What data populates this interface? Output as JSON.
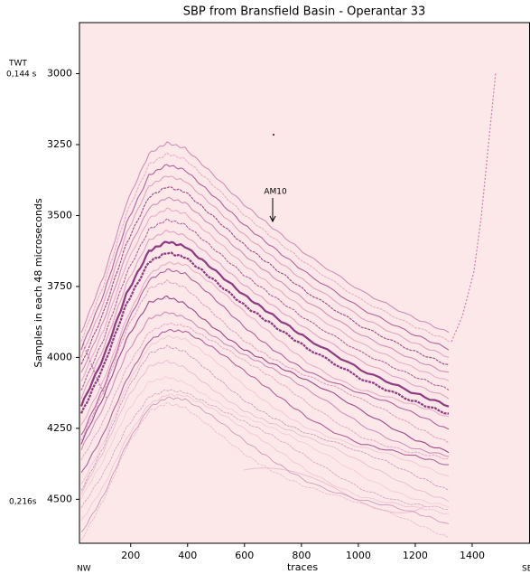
{
  "chart_data": {
    "type": "image",
    "title": "SBP from Bransfield Basin - Operantar 33",
    "xlabel": "traces",
    "ylabel": "Samples in each 48 microseconds",
    "xlim": [
      20,
      1600
    ],
    "xticks": [
      200,
      400,
      600,
      800,
      1000,
      1200,
      1400
    ],
    "ylim": [
      4655,
      2820
    ],
    "yticks": [
      3000,
      3250,
      3500,
      3750,
      4000,
      4250,
      4500
    ],
    "background": "#fde8e9",
    "annotations": {
      "twt": "TWT",
      "top_time": "0,144 s",
      "bottom_time": "0,216s",
      "left_end": "NW",
      "right_end": "SE",
      "horizon": "AM10"
    }
  }
}
